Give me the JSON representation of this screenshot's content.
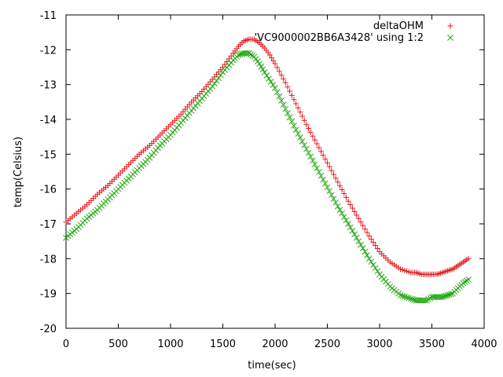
{
  "chart_data": {
    "type": "scatter",
    "xlabel": "time(sec)",
    "ylabel": "temp(Celsius)",
    "xlim": [
      0,
      4000
    ],
    "ylim": [
      -20,
      -11
    ],
    "xticks": [
      "0",
      "500",
      "1000",
      "1500",
      "2000",
      "2500",
      "3000",
      "3500",
      "4000"
    ],
    "yticks": [
      "-11",
      "-12",
      "-13",
      "-14",
      "-15",
      "-16",
      "-17",
      "-18",
      "-19",
      "-20"
    ],
    "grid": false,
    "legend_position": "top-right",
    "series": [
      {
        "name": "deltaOHM",
        "color": "#e41a1c",
        "marker": "plus",
        "x": [
          0,
          100,
          200,
          300,
          400,
          500,
          600,
          700,
          800,
          900,
          1000,
          1100,
          1200,
          1300,
          1400,
          1500,
          1600,
          1650,
          1700,
          1750,
          1800,
          1850,
          1900,
          1950,
          2000,
          2100,
          2200,
          2300,
          2400,
          2500,
          2600,
          2700,
          2800,
          2900,
          3000,
          3100,
          3200,
          3300,
          3350,
          3400,
          3450,
          3500,
          3550,
          3600,
          3650,
          3700,
          3750,
          3800,
          3850
        ],
        "y": [
          -16.95,
          -16.7,
          -16.45,
          -16.15,
          -15.9,
          -15.6,
          -15.3,
          -15.0,
          -14.75,
          -14.45,
          -14.15,
          -13.85,
          -13.5,
          -13.2,
          -12.85,
          -12.5,
          -12.1,
          -11.9,
          -11.75,
          -11.7,
          -11.7,
          -11.8,
          -11.95,
          -12.15,
          -12.4,
          -12.95,
          -13.55,
          -14.15,
          -14.7,
          -15.25,
          -15.8,
          -16.35,
          -16.85,
          -17.35,
          -17.8,
          -18.1,
          -18.3,
          -18.4,
          -18.4,
          -18.45,
          -18.45,
          -18.45,
          -18.45,
          -18.4,
          -18.35,
          -18.3,
          -18.2,
          -18.1,
          -18.0
        ]
      },
      {
        "name": "'VC9000002BB6A3428' using 1:2",
        "color": "#22a511",
        "marker": "cross",
        "x": [
          0,
          100,
          200,
          300,
          400,
          500,
          600,
          700,
          800,
          900,
          1000,
          1100,
          1200,
          1300,
          1400,
          1500,
          1600,
          1650,
          1700,
          1750,
          1800,
          1850,
          1900,
          2000,
          2100,
          2200,
          2300,
          2400,
          2500,
          2600,
          2700,
          2800,
          2900,
          3000,
          3100,
          3200,
          3300,
          3350,
          3400,
          3450,
          3500,
          3550,
          3600,
          3650,
          3700,
          3750,
          3800,
          3850
        ],
        "y": [
          -17.4,
          -17.15,
          -16.85,
          -16.6,
          -16.3,
          -16.0,
          -15.7,
          -15.4,
          -15.1,
          -14.75,
          -14.45,
          -14.1,
          -13.75,
          -13.4,
          -13.05,
          -12.65,
          -12.3,
          -12.15,
          -12.1,
          -12.1,
          -12.2,
          -12.4,
          -12.65,
          -13.1,
          -13.7,
          -14.3,
          -14.85,
          -15.4,
          -15.95,
          -16.5,
          -17.0,
          -17.5,
          -18.0,
          -18.45,
          -18.8,
          -19.05,
          -19.15,
          -19.2,
          -19.2,
          -19.2,
          -19.1,
          -19.1,
          -19.1,
          -19.05,
          -19.0,
          -18.85,
          -18.7,
          -18.6
        ]
      }
    ]
  }
}
